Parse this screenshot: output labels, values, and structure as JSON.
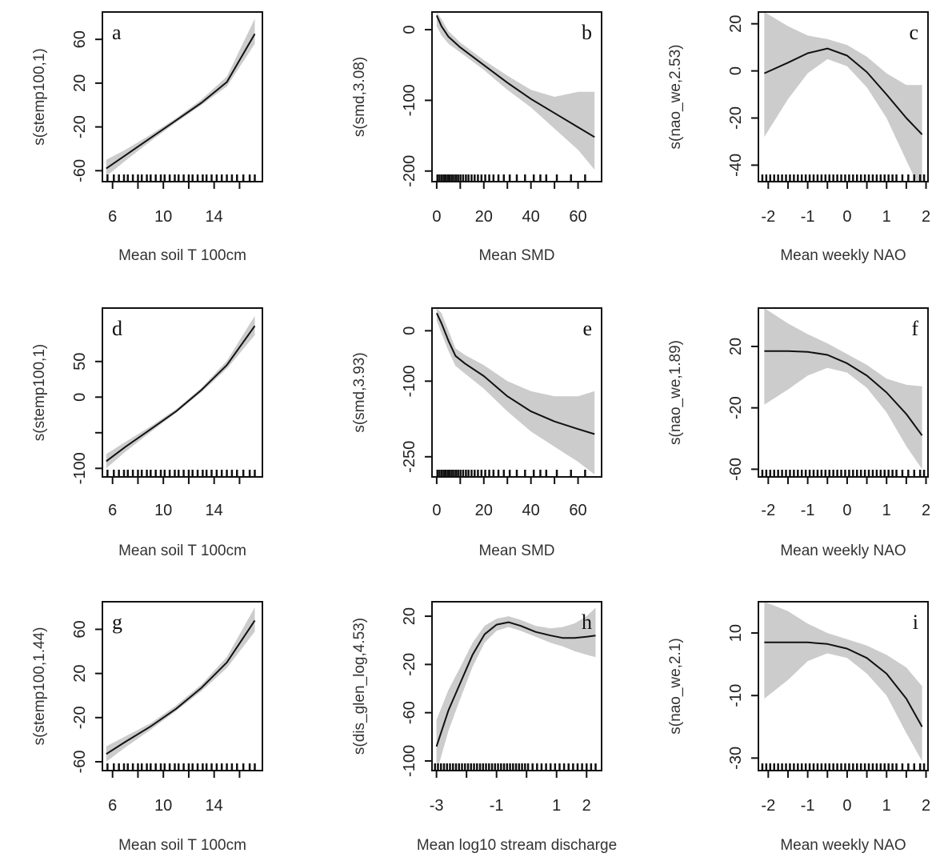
{
  "chart_data": [
    {
      "panel": "a",
      "type": "line",
      "ylabel": "s(stemp100,1)",
      "xlabel": "Mean soil T 100cm",
      "xlim": [
        5.2,
        17.8
      ],
      "ylim": [
        -70,
        85
      ],
      "xticks": [
        6,
        10,
        14
      ],
      "xtick_labels": [
        "6",
        "10",
        "14"
      ],
      "yticks": [
        -60,
        -20,
        20,
        60
      ],
      "ytick_labels": [
        "-60",
        "-20",
        "20",
        "60"
      ],
      "minor_xticks": [
        8,
        12,
        16
      ],
      "series": [
        {
          "x": [
            5.5,
            7,
            9,
            11,
            13,
            15,
            17.2
          ],
          "y": [
            -58,
            -46,
            -30,
            -14,
            2,
            21,
            65
          ],
          "lower": [
            -65,
            -51,
            -33,
            -16,
            0,
            17,
            56
          ],
          "upper": [
            -50,
            -41,
            -27,
            -12,
            5,
            26,
            79
          ]
        }
      ],
      "rug": [
        5.6,
        6.1,
        6.5,
        6.9,
        7.2,
        7.6,
        8.0,
        8.3,
        8.7,
        9.0,
        9.4,
        9.8,
        10.1,
        10.5,
        10.9,
        11.2,
        11.6,
        12.0,
        12.3,
        12.7,
        13.1,
        13.4,
        13.8,
        14.2,
        14.6,
        15.0,
        15.4,
        15.8,
        16.3,
        16.8,
        17.2
      ]
    },
    {
      "panel": "b",
      "type": "line",
      "ylabel": "s(smd,3.08)",
      "xlabel": "Mean SMD",
      "xlim": [
        -2,
        70
      ],
      "ylim": [
        -215,
        25
      ],
      "xticks": [
        0,
        20,
        40,
        60
      ],
      "xtick_labels": [
        "0",
        "20",
        "40",
        "60"
      ],
      "yticks": [
        -200,
        -100,
        0
      ],
      "ytick_labels": [
        "-200",
        "-100",
        "0"
      ],
      "minor_xticks": [
        10,
        30,
        50
      ],
      "series": [
        {
          "x": [
            0,
            2,
            5,
            10,
            20,
            30,
            40,
            50,
            60,
            67
          ],
          "y": [
            20,
            5,
            -10,
            -25,
            -50,
            -75,
            -98,
            -118,
            -138,
            -152
          ],
          "lower": [
            5,
            -8,
            -20,
            -32,
            -57,
            -85,
            -110,
            -140,
            -170,
            -198
          ],
          "upper": [
            25,
            15,
            -2,
            -18,
            -43,
            -65,
            -85,
            -95,
            -88,
            -88
          ]
        }
      ],
      "rug": [
        0.3,
        1.2,
        2.1,
        3.0,
        3.8,
        4.7,
        5.5,
        6.4,
        7.3,
        8.2,
        9.1,
        10.1,
        11.2,
        12.4,
        13.5,
        14.8,
        16.1,
        17.5,
        19.0,
        20.6,
        22.3,
        24.1,
        26.2,
        28.5,
        31.0,
        34.0,
        37.5,
        41.2,
        44.0,
        46.5,
        51.0,
        57.0,
        63.0
      ]
    },
    {
      "panel": "c",
      "type": "line",
      "ylabel": "s(nao_we,2.53)",
      "xlabel": "Mean weekly NAO",
      "xlim": [
        -2.25,
        2.05
      ],
      "ylim": [
        -47,
        25
      ],
      "xticks": [
        -2,
        -1,
        0,
        1,
        2
      ],
      "xtick_labels": [
        "-2",
        "-1",
        "0",
        "1",
        "2"
      ],
      "yticks": [
        -40,
        -20,
        0,
        20
      ],
      "ytick_labels": [
        "-40",
        "-20",
        "0",
        "20"
      ],
      "minor_xticks": [
        -1.5,
        -0.5,
        0.5,
        1.5
      ],
      "series": [
        {
          "x": [
            -2.1,
            -1.5,
            -1.0,
            -0.5,
            0.0,
            0.5,
            1.0,
            1.5,
            1.9
          ],
          "y": [
            -1,
            3.5,
            7.5,
            9.5,
            6.5,
            -0.5,
            -10,
            -20,
            -27
          ],
          "lower": [
            -28,
            -12,
            -1,
            5,
            2,
            -7,
            -20,
            -38,
            -52
          ],
          "upper": [
            25,
            19,
            15,
            13.5,
            11,
            6,
            -1,
            -6,
            -6
          ]
        }
      ],
      "rug": [
        -2.15,
        -2.05,
        -1.95,
        -1.85,
        -1.75,
        -1.65,
        -1.55,
        -1.45,
        -1.35,
        -1.25,
        -1.15,
        -1.05,
        -0.95,
        -0.85,
        -0.75,
        -0.65,
        -0.55,
        -0.45,
        -0.35,
        -0.25,
        -0.15,
        -0.05,
        0.05,
        0.15,
        0.25,
        0.35,
        0.45,
        0.55,
        0.65,
        0.75,
        0.85,
        0.95,
        1.05,
        1.15,
        1.25,
        1.4,
        1.55,
        1.7,
        1.85,
        1.95
      ]
    },
    {
      "panel": "d",
      "type": "line",
      "ylabel": "s(stemp100,1)",
      "xlabel": "Mean soil T 100cm",
      "xlim": [
        5.2,
        17.8
      ],
      "ylim": [
        -112,
        125
      ],
      "xticks": [
        6,
        10,
        14
      ],
      "xtick_labels": [
        "6",
        "10",
        "14"
      ],
      "yticks": [
        -100,
        -50,
        0,
        50
      ],
      "ytick_labels": [
        "-100",
        "",
        "0",
        "50"
      ],
      "minor_xticks": [
        8,
        12,
        16
      ],
      "series": [
        {
          "x": [
            5.5,
            7,
            9,
            11,
            13,
            15,
            17.2
          ],
          "y": [
            -90,
            -70,
            -45,
            -20,
            10,
            45,
            100
          ],
          "lower": [
            -100,
            -77,
            -49,
            -22,
            7,
            40,
            87
          ],
          "upper": [
            -80,
            -63,
            -41,
            -17,
            13,
            51,
            114
          ]
        }
      ],
      "rug": [
        5.6,
        6.1,
        6.5,
        6.9,
        7.2,
        7.6,
        8.0,
        8.3,
        8.7,
        9.0,
        9.4,
        9.8,
        10.1,
        10.5,
        10.9,
        11.2,
        11.6,
        12.0,
        12.3,
        12.7,
        13.1,
        13.4,
        13.8,
        14.2,
        14.6,
        15.0,
        15.4,
        15.8,
        16.3,
        16.8,
        17.2
      ]
    },
    {
      "panel": "e",
      "type": "line",
      "ylabel": "s(smd,3.93)",
      "xlabel": "Mean SMD",
      "xlim": [
        -2,
        70
      ],
      "ylim": [
        -290,
        45
      ],
      "xticks": [
        0,
        20,
        40,
        60
      ],
      "xtick_labels": [
        "0",
        "20",
        "40",
        "60"
      ],
      "yticks": [
        -250,
        -100,
        0
      ],
      "ytick_labels": [
        "-250",
        "-100",
        "0"
      ],
      "minor_xticks": [
        10,
        30,
        50
      ],
      "series": [
        {
          "x": [
            0,
            2,
            5,
            8,
            12,
            20,
            30,
            40,
            50,
            60,
            67
          ],
          "y": [
            35,
            15,
            -20,
            -50,
            -65,
            -90,
            -130,
            -160,
            -180,
            -195,
            -205
          ],
          "lower": [
            20,
            -5,
            -40,
            -70,
            -85,
            -115,
            -160,
            -200,
            -230,
            -260,
            -285
          ],
          "upper": [
            45,
            35,
            0,
            -35,
            -48,
            -68,
            -100,
            -120,
            -130,
            -130,
            -120
          ]
        }
      ],
      "rug": [
        0.3,
        1.2,
        2.1,
        3.0,
        3.8,
        4.7,
        5.5,
        6.4,
        7.3,
        8.2,
        9.1,
        10.1,
        11.2,
        12.4,
        13.5,
        14.8,
        16.1,
        17.5,
        19.0,
        20.6,
        22.3,
        24.1,
        26.2,
        28.5,
        31.0,
        34.0,
        37.5,
        41.2,
        44.0,
        46.5,
        51.0,
        57.0,
        63.0
      ]
    },
    {
      "panel": "f",
      "type": "line",
      "ylabel": "s(nao_we,1.89)",
      "xlabel": "Mean weekly NAO",
      "xlim": [
        -2.25,
        2.05
      ],
      "ylim": [
        -65,
        45
      ],
      "xticks": [
        -2,
        -1,
        0,
        1,
        2
      ],
      "xtick_labels": [
        "-2",
        "-1",
        "0",
        "1",
        "2"
      ],
      "yticks": [
        -60,
        -20,
        20
      ],
      "ytick_labels": [
        "-60",
        "-20",
        "20"
      ],
      "minor_xticks": [
        -1.5,
        -0.5,
        0.5,
        1.5
      ],
      "series": [
        {
          "x": [
            -2.1,
            -1.5,
            -1.0,
            -0.5,
            0.0,
            0.5,
            1.0,
            1.5,
            1.9
          ],
          "y": [
            17,
            17,
            16.5,
            14.5,
            9,
            1,
            -10,
            -24,
            -38
          ],
          "lower": [
            -18,
            -8,
            1,
            6,
            3,
            -7,
            -23,
            -45,
            -60
          ],
          "upper": [
            45,
            35,
            28,
            22,
            15,
            8,
            -1,
            -5,
            -6
          ]
        }
      ],
      "rug": [
        -2.15,
        -2.05,
        -1.95,
        -1.85,
        -1.75,
        -1.65,
        -1.55,
        -1.45,
        -1.35,
        -1.25,
        -1.15,
        -1.05,
        -0.95,
        -0.85,
        -0.75,
        -0.65,
        -0.55,
        -0.45,
        -0.35,
        -0.25,
        -0.15,
        -0.05,
        0.05,
        0.15,
        0.25,
        0.35,
        0.45,
        0.55,
        0.65,
        0.75,
        0.85,
        0.95,
        1.05,
        1.15,
        1.25,
        1.4,
        1.55,
        1.7,
        1.85,
        1.95
      ]
    },
    {
      "panel": "g",
      "type": "line",
      "ylabel": "s(stemp100,1.44)",
      "xlabel": "Mean soil T 100cm",
      "xlim": [
        5.2,
        17.8
      ],
      "ylim": [
        -68,
        85
      ],
      "xticks": [
        6,
        10,
        14
      ],
      "xtick_labels": [
        "6",
        "10",
        "14"
      ],
      "yticks": [
        -60,
        -20,
        20,
        60
      ],
      "ytick_labels": [
        "-60",
        "-20",
        "20",
        "60"
      ],
      "minor_xticks": [
        8,
        12,
        16
      ],
      "series": [
        {
          "x": [
            5.5,
            7,
            9,
            11,
            13,
            15,
            17.2
          ],
          "y": [
            -53,
            -42,
            -28,
            -12,
            7,
            30,
            68
          ],
          "lower": [
            -60,
            -47,
            -31,
            -14,
            4,
            25,
            58
          ],
          "upper": [
            -46,
            -37,
            -25,
            -9,
            10,
            35,
            80
          ]
        }
      ],
      "rug": [
        5.6,
        6.1,
        6.5,
        6.9,
        7.2,
        7.6,
        8.0,
        8.3,
        8.7,
        9.0,
        9.4,
        9.8,
        10.1,
        10.5,
        10.9,
        11.2,
        11.6,
        12.0,
        12.3,
        12.7,
        13.1,
        13.4,
        13.8,
        14.2,
        14.6,
        15.0,
        15.4,
        15.8,
        16.3,
        16.8,
        17.2
      ]
    },
    {
      "panel": "h",
      "type": "line",
      "ylabel": "s(dis_glen_log,4.53)",
      "xlabel": "Mean log10 stream discharge",
      "xlim": [
        -3.15,
        2.5
      ],
      "ylim": [
        -108,
        32
      ],
      "xticks": [
        -3,
        -1,
        1,
        2
      ],
      "xtick_labels": [
        "-3",
        "-1",
        "1",
        "2"
      ],
      "yticks": [
        -100,
        -60,
        -20,
        20
      ],
      "ytick_labels": [
        "-100",
        "-60",
        "-20",
        "20"
      ],
      "minor_xticks": [
        -2,
        0
      ],
      "series": [
        {
          "x": [
            -3.0,
            -2.6,
            -2.2,
            -1.8,
            -1.4,
            -1.0,
            -0.6,
            -0.2,
            0.3,
            0.8,
            1.2,
            1.6,
            2.0,
            2.3
          ],
          "y": [
            -88,
            -58,
            -35,
            -12,
            5,
            13,
            15,
            12,
            7,
            4,
            2,
            2,
            3,
            4
          ],
          "lower": [
            -110,
            -75,
            -48,
            -22,
            -2,
            8,
            11,
            8,
            3,
            -2,
            -5,
            -9,
            -12,
            -14
          ],
          "upper": [
            -66,
            -41,
            -22,
            -2,
            12,
            18,
            20,
            17,
            12,
            10,
            11,
            14,
            20,
            27
          ]
        }
      ],
      "rug": [
        -3.05,
        -2.95,
        -2.85,
        -2.75,
        -2.65,
        -2.55,
        -2.45,
        -2.35,
        -2.25,
        -2.15,
        -2.05,
        -1.95,
        -1.85,
        -1.75,
        -1.65,
        -1.55,
        -1.45,
        -1.35,
        -1.25,
        -1.15,
        -1.05,
        -0.95,
        -0.85,
        -0.75,
        -0.65,
        -0.55,
        -0.45,
        -0.35,
        -0.25,
        -0.15,
        -0.05,
        0.05,
        0.2,
        0.35,
        0.5,
        0.65,
        0.8,
        0.95,
        1.1,
        1.25,
        1.4,
        1.55,
        1.7,
        1.85,
        2.0,
        2.15,
        2.3
      ]
    },
    {
      "panel": "i",
      "type": "line",
      "ylabel": "s(nao_we,2.1)",
      "xlabel": "Mean weekly NAO",
      "xlim": [
        -2.25,
        2.05
      ],
      "ylim": [
        -34,
        20
      ],
      "xticks": [
        -2,
        -1,
        0,
        1,
        2
      ],
      "xtick_labels": [
        "-2",
        "-1",
        "0",
        "1",
        "2"
      ],
      "yticks": [
        -30,
        -10,
        10
      ],
      "ytick_labels": [
        "-30",
        "-10",
        "10"
      ],
      "minor_xticks": [
        -1.5,
        -0.5,
        0.5,
        1.5
      ],
      "series": [
        {
          "x": [
            -2.1,
            -1.5,
            -1.0,
            -0.5,
            0.0,
            0.5,
            1.0,
            1.5,
            1.9
          ],
          "y": [
            7,
            7,
            7,
            6.5,
            5,
            2,
            -3,
            -11,
            -20
          ],
          "lower": [
            -11,
            -5,
            1,
            3.5,
            2,
            -3,
            -10,
            -22,
            -31
          ],
          "upper": [
            20,
            17,
            13,
            10,
            8,
            6,
            3,
            -1,
            -7
          ]
        }
      ],
      "rug": [
        -2.15,
        -2.05,
        -1.95,
        -1.85,
        -1.75,
        -1.65,
        -1.55,
        -1.45,
        -1.35,
        -1.25,
        -1.15,
        -1.05,
        -0.95,
        -0.85,
        -0.75,
        -0.65,
        -0.55,
        -0.45,
        -0.35,
        -0.25,
        -0.15,
        -0.05,
        0.05,
        0.15,
        0.25,
        0.35,
        0.45,
        0.55,
        0.65,
        0.75,
        0.85,
        0.95,
        1.05,
        1.15,
        1.25,
        1.4,
        1.55,
        1.7,
        1.85,
        1.95
      ]
    }
  ],
  "colors": {
    "band": "#cccccc",
    "line": "#111111",
    "frame": "#111111",
    "text": "#222222"
  }
}
